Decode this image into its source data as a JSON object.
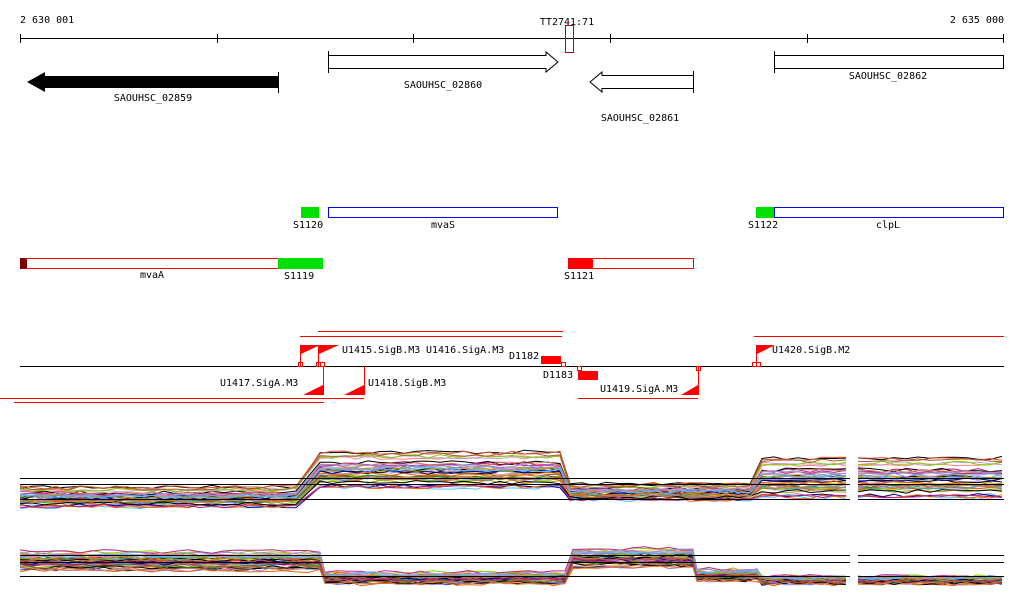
{
  "ruler": {
    "start_label": "2 630 001",
    "end_label": "2 635 000",
    "marker_label": "TT2741:71"
  },
  "genes": [
    {
      "id": "SAOUHSC_02859",
      "strand": "-",
      "style": "filled"
    },
    {
      "id": "SAOUHSC_02860",
      "strand": "+",
      "style": "outline"
    },
    {
      "id": "SAOUHSC_02861",
      "strand": "-",
      "style": "outline"
    },
    {
      "id": "SAOUHSC_02862",
      "strand": "+",
      "style": "outline"
    }
  ],
  "transcripts": {
    "mvaS": "mvaS",
    "clpL": "clpL",
    "mvaA": "mvaA",
    "s1120": "S1120",
    "s1122": "S1122",
    "s1119": "S1119",
    "s1121": "S1121"
  },
  "features": {
    "u1415": "U1415.SigB.M3",
    "u1416": "U1416.SigA.M3",
    "d1182": "D1182",
    "u1417": "U1417.SigA.M3",
    "u1418": "U1418.SigB.M3",
    "d1183": "D1183",
    "u1419": "U1419.SigA.M3",
    "u1420": "U1420.SigB.M2"
  },
  "colors": {
    "red": "#ff0000",
    "green": "#00e000",
    "darkred": "#800000",
    "blue": "#0000ff"
  },
  "expression_colors": [
    "#e05030",
    "#a0a000",
    "#50c0ff",
    "#c02080",
    "#80d000",
    "#d08060",
    "#9090e0",
    "#a06030",
    "#ff8080",
    "#208020",
    "#c0a0d0",
    "#e0c040",
    "#8080ff",
    "#000080",
    "#60a0a0",
    "#f06000"
  ]
}
